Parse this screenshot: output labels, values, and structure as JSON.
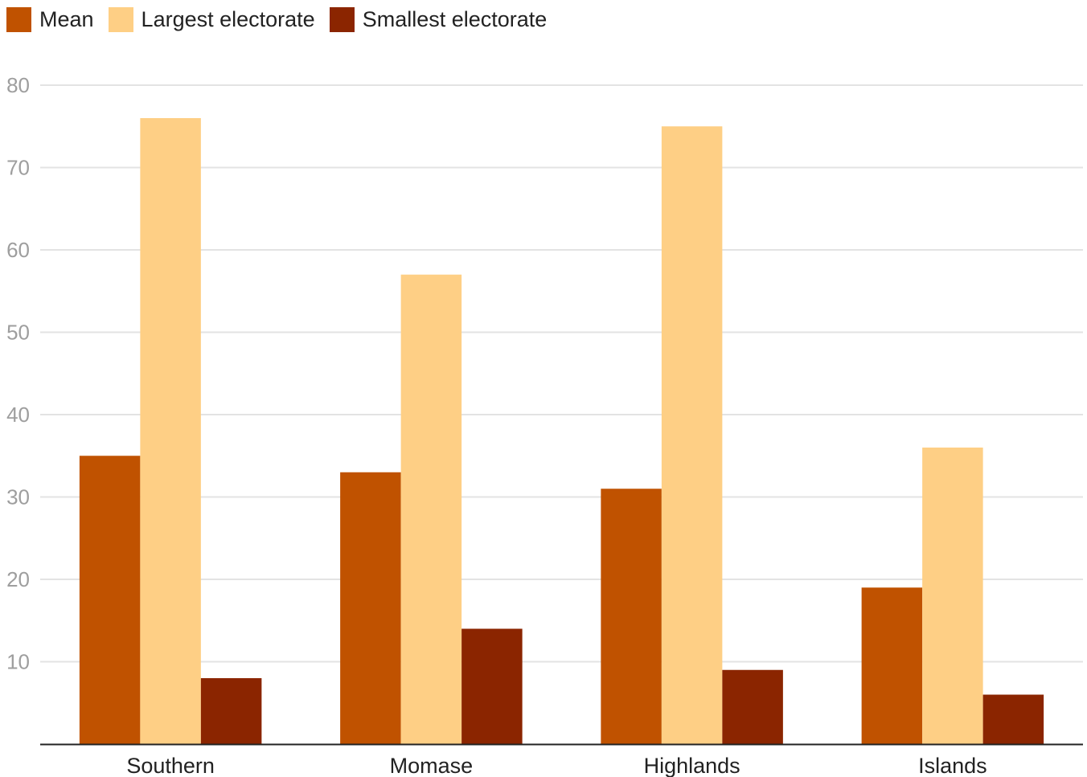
{
  "chart_data": {
    "type": "bar",
    "categories": [
      "Southern",
      "Momase",
      "Highlands",
      "Islands"
    ],
    "series": [
      {
        "name": "Mean",
        "values": [
          35,
          33,
          31,
          19
        ]
      },
      {
        "name": "Largest electorate",
        "values": [
          76,
          57,
          75,
          36
        ]
      },
      {
        "name": "Smallest electorate",
        "values": [
          8,
          14,
          9,
          6
        ]
      }
    ],
    "colors": [
      "#c05200",
      "#fecf85",
      "#8b2500"
    ],
    "ylim": [
      0,
      80
    ],
    "yticks": [
      10,
      20,
      30,
      40,
      50,
      60,
      70,
      80
    ],
    "title": "",
    "xlabel": "",
    "ylabel": "",
    "grid": true,
    "legend_position": "top-left"
  }
}
